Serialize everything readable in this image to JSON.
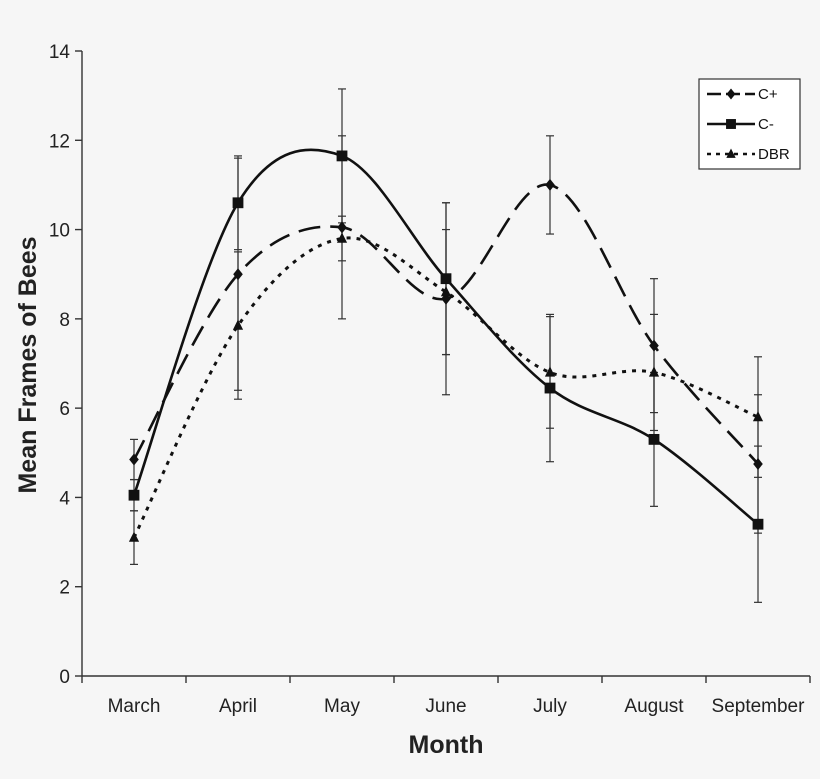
{
  "chart_data": {
    "type": "line",
    "title": "",
    "xlabel": "Month",
    "ylabel": "Mean Frames of Bees",
    "categories": [
      "March",
      "April",
      "May",
      "June",
      "July",
      "August",
      "September"
    ],
    "ylim": [
      0,
      14
    ],
    "yticks": [
      0,
      2,
      4,
      6,
      8,
      10,
      12,
      14
    ],
    "grid": false,
    "legend_position": "top-right",
    "series": [
      {
        "name": "C+",
        "line_style": "long-dash",
        "marker": "diamond",
        "values": [
          4.85,
          9.0,
          10.05,
          8.45,
          11.0,
          7.4,
          4.75
        ],
        "error": [
          0.45,
          2.6,
          2.05,
          2.15,
          1.1,
          1.5,
          1.55
        ]
      },
      {
        "name": "C-",
        "line_style": "solid",
        "marker": "square",
        "values": [
          4.05,
          10.6,
          11.65,
          8.9,
          6.45,
          5.3,
          3.4
        ],
        "error": [
          0.35,
          1.05,
          1.5,
          1.7,
          1.65,
          1.5,
          1.75
        ]
      },
      {
        "name": "DBR",
        "line_style": "dotted",
        "marker": "triangle",
        "values": [
          3.1,
          7.85,
          9.8,
          8.6,
          6.8,
          6.8,
          5.8
        ],
        "error": [
          0.6,
          1.65,
          0.5,
          1.4,
          1.25,
          1.3,
          1.35
        ]
      }
    ]
  }
}
